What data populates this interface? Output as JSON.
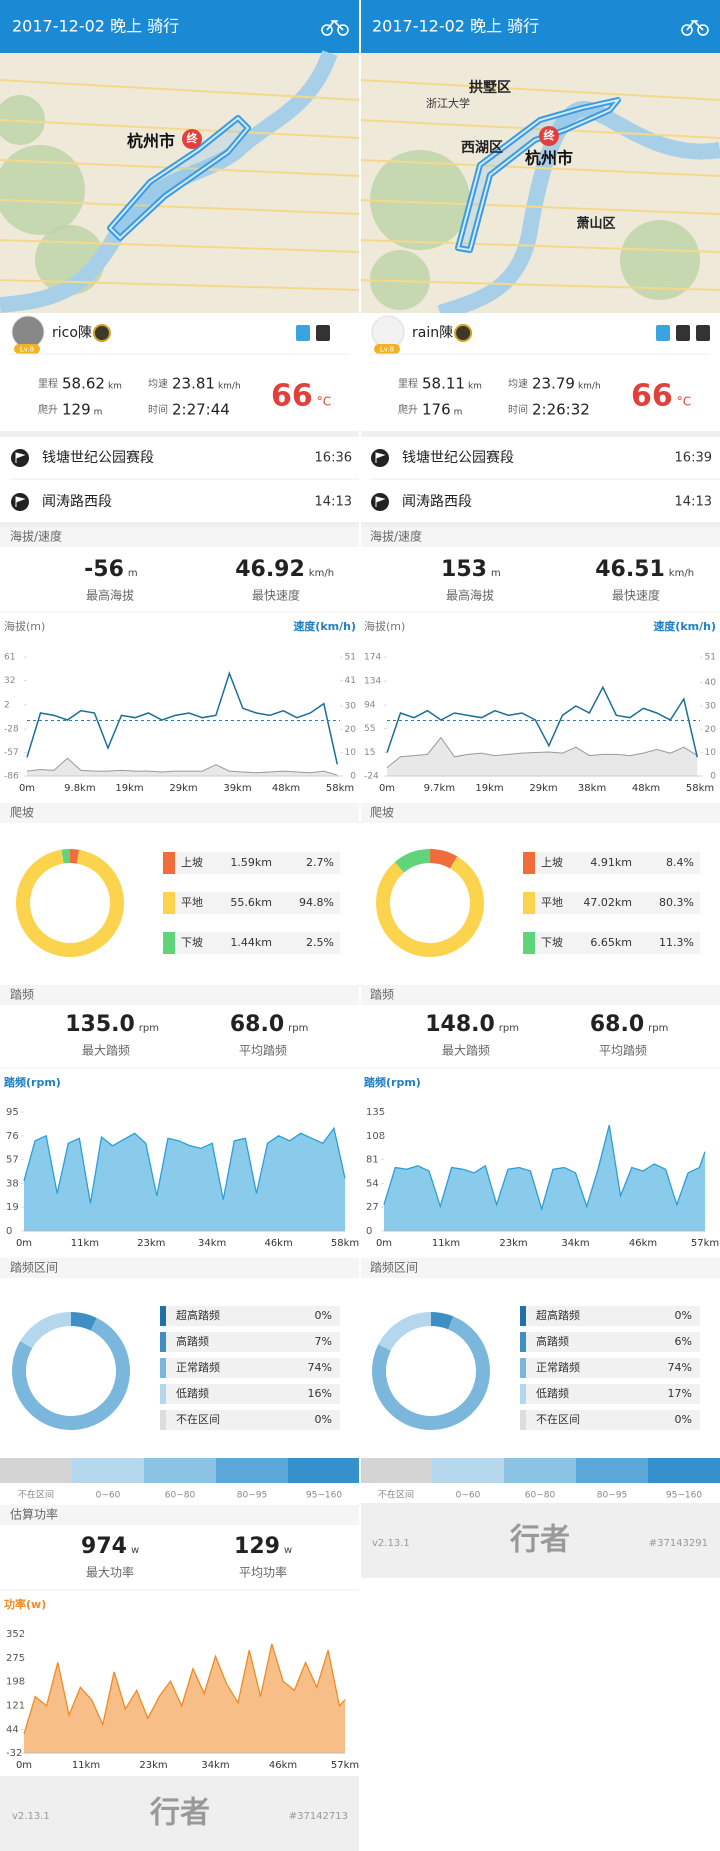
{
  "columns": [
    {
      "header": "2017-12-02 晚上 骑行",
      "map_labels": [
        "杭州市",
        "终"
      ],
      "user": {
        "name": "rico陳",
        "level": "Lv.8"
      },
      "stats": {
        "distance_label": "里程",
        "distance": 58.62,
        "distance_unit": "km",
        "avg_speed_label": "均速",
        "avg_speed": 23.81,
        "avg_speed_unit": "km/h",
        "climb_label": "爬升",
        "climb": 129,
        "climb_unit": "m",
        "time_label": "时间",
        "time": "2:27:44",
        "temperature": 66,
        "temperature_unit": "°C"
      },
      "segments": [
        {
          "name": "钱塘世纪公园赛段",
          "time": "16:36"
        },
        {
          "name": "闻涛路西段",
          "time": "14:13"
        }
      ],
      "elevation_speed": {
        "title": "海拔/速度",
        "max_altitude": -56,
        "altitude_unit": "m",
        "max_altitude_label": "最高海拔",
        "max_speed": 46.92,
        "speed_unit": "km/h",
        "max_speed_label": "最快速度"
      },
      "elevation_chart": {
        "type": "line",
        "y_label": "海拔(m)",
        "y2_label": "速度(km/h)",
        "x": [
          0,
          2.5,
          5,
          7.5,
          10,
          12.5,
          15,
          17.5,
          20,
          22.5,
          25,
          27.5,
          30,
          32.5,
          35,
          37.5,
          40,
          42.5,
          45,
          47.5,
          50,
          52.5,
          55,
          57.5
        ],
        "xlim": [
          0,
          58
        ],
        "xticks": [
          {
            "value": 0,
            "label": "0m"
          },
          {
            "value": 9.8,
            "label": "9.8km"
          },
          {
            "value": 19,
            "label": "19km"
          },
          {
            "value": 29,
            "label": "29km"
          },
          {
            "value": 39,
            "label": "39km"
          },
          {
            "value": 48,
            "label": "48km"
          },
          {
            "value": 58,
            "label": "58km"
          }
        ],
        "ylim": [
          -86,
          61
        ],
        "yticks": [
          -86,
          -57,
          -28,
          2,
          32,
          61
        ],
        "y2lim": [
          0,
          51
        ],
        "y2ticks": [
          0,
          10,
          20,
          30,
          41,
          51
        ],
        "series": [
          {
            "color": "#999999",
            "area": true,
            "values": [
              -80,
              -78,
              -79,
              -64,
              -79,
              -80,
              -80,
              -79,
              -80,
              -80,
              -81,
              -80,
              -80,
              -80,
              -72,
              -80,
              -81,
              -82,
              -81,
              -80,
              -81,
              -82,
              -80,
              -85
            ]
          },
          {
            "color": "#1a6e99",
            "axis": "y2",
            "values": [
              8,
              27,
              26,
              24,
              28,
              27,
              12,
              26,
              25,
              27,
              24,
              26,
              27,
              25,
              26,
              44,
              29,
              27,
              26,
              28,
              25,
              27,
              31,
              5
            ]
          }
        ]
      },
      "climb": {
        "type": "pie",
        "title": "爬坡",
        "categories": [
          "上坡",
          "平地",
          "下坡"
        ],
        "distances": [
          "1.59km",
          "55.6km",
          "1.44km"
        ],
        "values": [
          2.7,
          94.8,
          2.5
        ],
        "value_labels": [
          "2.7%",
          "94.8%",
          "2.5%"
        ],
        "colors": [
          "#f26b3a",
          "#fcd34d",
          "#5fd47a"
        ]
      },
      "cadence": {
        "title": "踏频",
        "max": "135.0",
        "max_unit": "rpm",
        "max_label": "最大踏频",
        "avg": "68.0",
        "avg_unit": "rpm",
        "avg_label": "平均踏频"
      },
      "cadence_chart": {
        "type": "area",
        "title": "踏频(rpm)",
        "color": "#2a9fd8",
        "x": [
          0,
          2,
          4,
          6,
          8,
          10,
          12,
          14,
          16,
          18,
          20,
          22,
          24,
          26,
          28,
          30,
          32,
          34,
          36,
          38,
          40,
          42,
          44,
          46,
          48,
          50,
          52,
          54,
          56,
          58
        ],
        "values": [
          40,
          72,
          76,
          30,
          70,
          74,
          22,
          75,
          68,
          73,
          78,
          70,
          28,
          74,
          72,
          68,
          66,
          70,
          25,
          72,
          74,
          30,
          70,
          76,
          72,
          78,
          74,
          70,
          82,
          42
        ],
        "xlim": [
          0,
          58
        ],
        "xticks": [
          {
            "value": 0,
            "label": "0m"
          },
          {
            "value": 11,
            "label": "11km"
          },
          {
            "value": 23,
            "label": "23km"
          },
          {
            "value": 34,
            "label": "34km"
          },
          {
            "value": 46,
            "label": "46km"
          },
          {
            "value": 58,
            "label": "58km"
          }
        ],
        "ylim": [
          0,
          95
        ],
        "yticks": [
          0,
          19,
          38,
          57,
          76,
          95
        ]
      },
      "cadence_zones": {
        "type": "pie",
        "title": "踏频区间",
        "categories": [
          "超高踏频",
          "高踏频",
          "正常踏频",
          "低踏频",
          "不在区间"
        ],
        "values": [
          0,
          7,
          74,
          16,
          0
        ],
        "value_labels": [
          "0%",
          "7%",
          "74%",
          "16%",
          "0%"
        ],
        "colors": [
          "#1f6fa8",
          "#3d8fc4",
          "#7bb6dc",
          "#b4d7ee",
          "#dddddd"
        ]
      },
      "zone_scale": {
        "labels": [
          "不在区间",
          "0~60",
          "60~80",
          "80~95",
          "95~160"
        ],
        "colors": [
          "#d4d4d4",
          "#b4d7ee",
          "#8cc3e4",
          "#5ba8d8",
          "#3591cb"
        ]
      },
      "power": {
        "title": "估算功率",
        "max": 974,
        "max_unit": "w",
        "max_label": "最大功率",
        "avg": 129,
        "avg_unit": "w",
        "avg_label": "平均功率"
      },
      "power_chart": {
        "type": "area",
        "title": "功率(w)",
        "color": "#f08a24",
        "x": [
          0,
          2,
          4,
          6,
          8,
          10,
          12,
          14,
          16,
          18,
          20,
          22,
          24,
          26,
          28,
          30,
          32,
          34,
          36,
          38,
          40,
          42,
          44,
          46,
          48,
          50,
          52,
          54,
          56,
          57
        ],
        "values": [
          30,
          150,
          120,
          260,
          90,
          180,
          140,
          60,
          230,
          110,
          170,
          80,
          150,
          200,
          120,
          240,
          160,
          280,
          190,
          130,
          300,
          150,
          320,
          200,
          170,
          260,
          180,
          300,
          120,
          140
        ],
        "xlim": [
          0,
          57
        ],
        "xticks": [
          {
            "value": 0,
            "label": "0m"
          },
          {
            "value": 11,
            "label": "11km"
          },
          {
            "value": 23,
            "label": "23km"
          },
          {
            "value": 34,
            "label": "34km"
          },
          {
            "value": 46,
            "label": "46km"
          },
          {
            "value": 57,
            "label": "57km"
          }
        ],
        "ylim": [
          -32,
          352
        ],
        "yticks": [
          -32,
          44,
          121,
          198,
          275,
          352
        ]
      },
      "footer": {
        "version": "v2.13.1",
        "logo": "行者",
        "id": "#37142713"
      }
    },
    {
      "header": "2017-12-02 晚上 骑行",
      "map_labels": [
        "拱墅区",
        "浙江大学",
        "西湖区",
        "杭州市",
        "终",
        "萧山区"
      ],
      "user": {
        "name": "rain陳",
        "level": "Lv.8"
      },
      "stats": {
        "distance_label": "里程",
        "distance": 58.11,
        "distance_unit": "km",
        "avg_speed_label": "均速",
        "avg_speed": 23.79,
        "avg_speed_unit": "km/h",
        "climb_label": "爬升",
        "climb": 176,
        "climb_unit": "m",
        "time_label": "时间",
        "time": "2:26:32",
        "temperature": 66,
        "temperature_unit": "°C"
      },
      "segments": [
        {
          "name": "钱塘世纪公园赛段",
          "time": "16:39"
        },
        {
          "name": "闻涛路西段",
          "time": "14:13"
        }
      ],
      "elevation_speed": {
        "title": "海拔/速度",
        "max_altitude": 153,
        "altitude_unit": "m",
        "max_altitude_label": "最高海拔",
        "max_speed": 46.51,
        "speed_unit": "km/h",
        "max_speed_label": "最快速度"
      },
      "elevation_chart": {
        "type": "line",
        "y_label": "海拔(m)",
        "y2_label": "速度(km/h)",
        "x": [
          0,
          2.5,
          5,
          7.5,
          10,
          12.5,
          15,
          17.5,
          20,
          22.5,
          25,
          27.5,
          30,
          32.5,
          35,
          37.5,
          40,
          42.5,
          45,
          47.5,
          50,
          52.5,
          55,
          57.5
        ],
        "xlim": [
          0,
          58
        ],
        "xticks": [
          {
            "value": 0,
            "label": "0m"
          },
          {
            "value": 9.7,
            "label": "9.7km"
          },
          {
            "value": 19,
            "label": "19km"
          },
          {
            "value": 29,
            "label": "29km"
          },
          {
            "value": 38,
            "label": "38km"
          },
          {
            "value": 48,
            "label": "48km"
          },
          {
            "value": 58,
            "label": "58km"
          }
        ],
        "ylim": [
          -24,
          174
        ],
        "yticks": [
          -24,
          15,
          55,
          94,
          134,
          174
        ],
        "y2lim": [
          0,
          51
        ],
        "y2ticks": [
          0,
          10,
          20,
          30,
          40,
          51
        ],
        "series": [
          {
            "color": "#999999",
            "area": true,
            "values": [
              -10,
              8,
              10,
              12,
              40,
              8,
              12,
              14,
              10,
              12,
              14,
              15,
              16,
              14,
              24,
              10,
              12,
              12,
              10,
              14,
              20,
              14,
              24,
              10
            ]
          },
          {
            "color": "#1a6e99",
            "axis": "y2",
            "values": [
              10,
              27,
              25,
              28,
              24,
              27,
              26,
              25,
              28,
              26,
              27,
              24,
              13,
              26,
              30,
              27,
              38,
              26,
              25,
              29,
              27,
              24,
              33,
              8
            ]
          }
        ]
      },
      "climb": {
        "type": "pie",
        "title": "爬坡",
        "categories": [
          "上坡",
          "平地",
          "下坡"
        ],
        "distances": [
          "4.91km",
          "47.02km",
          "6.65km"
        ],
        "values": [
          8.4,
          80.3,
          11.3
        ],
        "value_labels": [
          "8.4%",
          "80.3%",
          "11.3%"
        ],
        "colors": [
          "#f26b3a",
          "#fcd34d",
          "#5fd47a"
        ]
      },
      "cadence": {
        "title": "踏频",
        "max": "148.0",
        "max_unit": "rpm",
        "max_label": "最大踏频",
        "avg": "68.0",
        "avg_unit": "rpm",
        "avg_label": "平均踏频"
      },
      "cadence_chart": {
        "type": "area",
        "title": "踏频(rpm)",
        "color": "#2a9fd8",
        "x": [
          0,
          2,
          4,
          6,
          8,
          10,
          12,
          14,
          16,
          18,
          20,
          22,
          24,
          26,
          28,
          30,
          32,
          34,
          36,
          38,
          40,
          42,
          44,
          46,
          48,
          50,
          52,
          54,
          56,
          57
        ],
        "values": [
          30,
          72,
          70,
          74,
          68,
          28,
          72,
          70,
          66,
          74,
          30,
          70,
          72,
          68,
          25,
          70,
          72,
          66,
          28,
          70,
          120,
          40,
          72,
          68,
          76,
          70,
          30,
          66,
          72,
          90
        ],
        "xlim": [
          0,
          57
        ],
        "xticks": [
          {
            "value": 0,
            "label": "0m"
          },
          {
            "value": 11,
            "label": "11km"
          },
          {
            "value": 23,
            "label": "23km"
          },
          {
            "value": 34,
            "label": "34km"
          },
          {
            "value": 46,
            "label": "46km"
          },
          {
            "value": 57,
            "label": "57km"
          }
        ],
        "ylim": [
          0,
          135
        ],
        "yticks": [
          0,
          27,
          54,
          81,
          108,
          135
        ]
      },
      "cadence_zones": {
        "type": "pie",
        "title": "踏频区间",
        "categories": [
          "超高踏频",
          "高踏频",
          "正常踏频",
          "低踏频",
          "不在区间"
        ],
        "values": [
          0,
          6,
          74,
          17,
          0
        ],
        "value_labels": [
          "0%",
          "6%",
          "74%",
          "17%",
          "0%"
        ],
        "colors": [
          "#1f6fa8",
          "#3d8fc4",
          "#7bb6dc",
          "#b4d7ee",
          "#dddddd"
        ]
      },
      "zone_scale": {
        "labels": [
          "不在区间",
          "0~60",
          "60~80",
          "80~95",
          "95~160"
        ],
        "colors": [
          "#d4d4d4",
          "#b4d7ee",
          "#8cc3e4",
          "#5ba8d8",
          "#3591cb"
        ]
      },
      "footer": {
        "version": "v2.13.1",
        "logo": "行者",
        "id": "#37143291"
      }
    }
  ]
}
